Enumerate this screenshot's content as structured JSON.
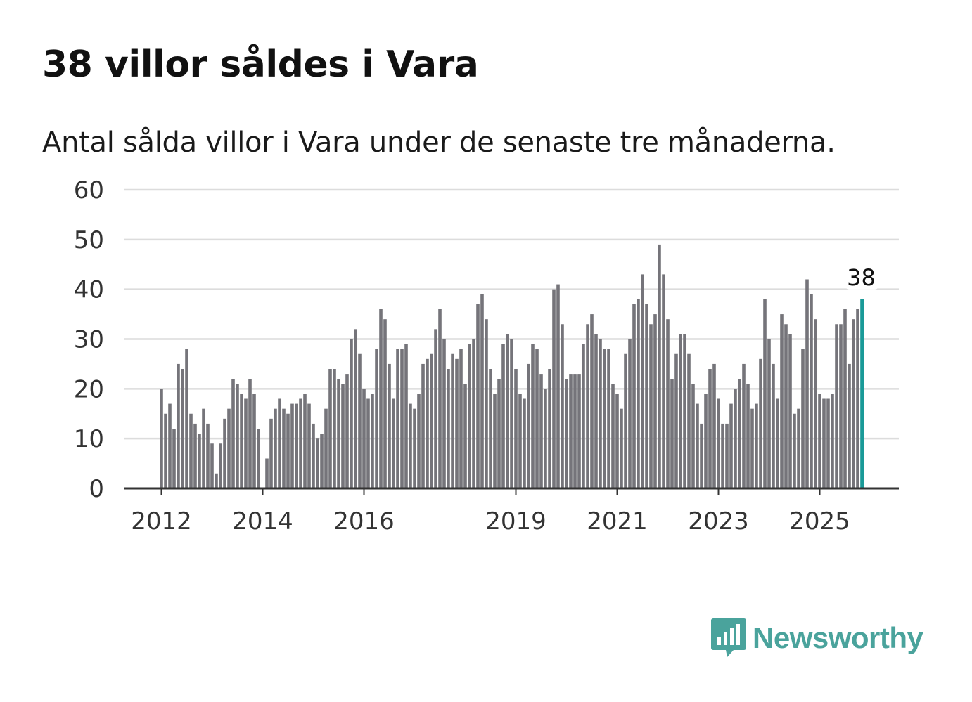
{
  "header": {
    "title": "38 villor såldes i Vara",
    "subtitle": "Antal sålda villor i Vara under de senaste tre månaderna."
  },
  "brand": {
    "name": "Newsworthy",
    "logo_icon": "bar-chart-speech-icon",
    "color": "#4aa39c"
  },
  "colors": {
    "bar": "#75747a",
    "highlight": "#1a9a98",
    "grid": "#dcdcdc",
    "axis": "#333333"
  },
  "chart_data": {
    "type": "bar",
    "title": "38 villor såldes i Vara",
    "subtitle": "Antal sålda villor i Vara under de senaste tre månaderna.",
    "xlabel": "",
    "ylabel": "",
    "ylim": [
      0,
      60
    ],
    "yticks": [
      0,
      10,
      20,
      30,
      40,
      50,
      60
    ],
    "xticks": [
      {
        "label": "2012",
        "index": 0
      },
      {
        "label": "2014",
        "index": 24
      },
      {
        "label": "2016",
        "index": 48
      },
      {
        "label": "2019",
        "index": 84
      },
      {
        "label": "2021",
        "index": 108
      },
      {
        "label": "2023",
        "index": 132
      },
      {
        "label": "2025",
        "index": 156
      }
    ],
    "start": "2012-01",
    "frequency": "monthly",
    "values": [
      20,
      15,
      17,
      12,
      25,
      24,
      28,
      15,
      13,
      11,
      16,
      13,
      9,
      3,
      9,
      14,
      16,
      22,
      21,
      19,
      18,
      22,
      19,
      12,
      0,
      6,
      14,
      16,
      18,
      16,
      15,
      17,
      17,
      18,
      19,
      17,
      13,
      10,
      11,
      16,
      24,
      24,
      22,
      21,
      23,
      30,
      32,
      27,
      20,
      18,
      19,
      28,
      36,
      34,
      25,
      18,
      28,
      28,
      29,
      17,
      16,
      19,
      25,
      26,
      27,
      32,
      36,
      30,
      24,
      27,
      26,
      28,
      21,
      29,
      30,
      37,
      39,
      34,
      24,
      19,
      22,
      29,
      31,
      30,
      24,
      19,
      18,
      25,
      29,
      28,
      23,
      20,
      24,
      40,
      41,
      33,
      22,
      23,
      23,
      23,
      29,
      33,
      35,
      31,
      30,
      28,
      28,
      21,
      19,
      16,
      27,
      30,
      37,
      38,
      43,
      37,
      33,
      35,
      49,
      43,
      34,
      22,
      27,
      31,
      31,
      27,
      21,
      17,
      13,
      19,
      24,
      25,
      18,
      13,
      13,
      17,
      20,
      22,
      25,
      21,
      16,
      17,
      26,
      38,
      30,
      25,
      18,
      35,
      33,
      31,
      15,
      16,
      28,
      42,
      39,
      34,
      19,
      18,
      18,
      19,
      33,
      33,
      36,
      25,
      34,
      36,
      38
    ],
    "highlight_last": true,
    "annotation": {
      "label": "38",
      "index": 166
    }
  }
}
